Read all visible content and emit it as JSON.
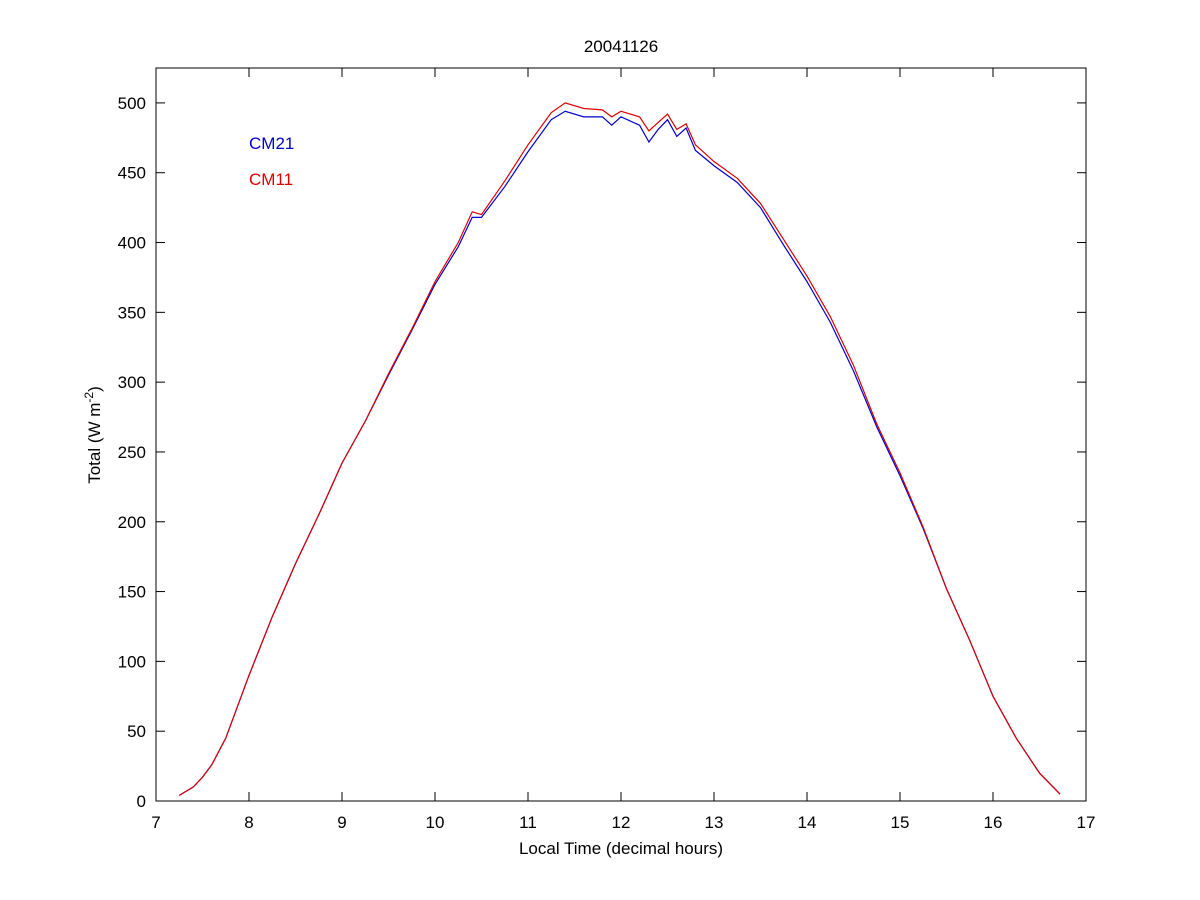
{
  "chart_data": {
    "type": "line",
    "title": "20041126",
    "xlabel": "Local Time (decimal hours)",
    "ylabel": {
      "text": "Total (W m",
      "sup": "-2",
      "end": ")"
    },
    "x": [
      7.25,
      7.4,
      7.5,
      7.6,
      7.75,
      8.0,
      8.25,
      8.5,
      8.75,
      9.0,
      9.25,
      9.5,
      9.75,
      10.0,
      10.25,
      10.4,
      10.5,
      10.75,
      11.0,
      11.25,
      11.4,
      11.6,
      11.8,
      11.9,
      12.0,
      12.2,
      12.3,
      12.4,
      12.5,
      12.6,
      12.7,
      12.8,
      13.0,
      13.25,
      13.5,
      13.75,
      14.0,
      14.25,
      14.5,
      14.75,
      15.0,
      15.25,
      15.5,
      15.75,
      16.0,
      16.25,
      16.5,
      16.72
    ],
    "series": [
      {
        "name": "CM21",
        "color": "#0000cc",
        "values": [
          4,
          10,
          17,
          26,
          45,
          90,
          132,
          170,
          205,
          242,
          272,
          305,
          337,
          370,
          397,
          418,
          418,
          440,
          465,
          488,
          494,
          490,
          490,
          484,
          490,
          484,
          472,
          481,
          488,
          476,
          482,
          466,
          455,
          443,
          425,
          398,
          372,
          343,
          308,
          268,
          233,
          195,
          152,
          115,
          75,
          45,
          20,
          5
        ]
      },
      {
        "name": "CM11",
        "color": "#dd0000",
        "values": [
          4,
          10,
          17,
          26,
          45,
          90,
          132,
          170,
          205,
          242,
          272,
          306,
          338,
          372,
          400,
          422,
          420,
          444,
          470,
          493,
          500,
          496,
          495,
          490,
          494,
          490,
          480,
          486,
          492,
          481,
          485,
          470,
          458,
          446,
          428,
          402,
          376,
          347,
          312,
          270,
          235,
          196,
          152,
          115,
          75,
          45,
          20,
          5
        ]
      }
    ],
    "xlim": [
      7,
      17
    ],
    "xticks": [
      7,
      8,
      9,
      10,
      11,
      12,
      13,
      14,
      15,
      16,
      17
    ],
    "ylim": [
      0,
      525
    ],
    "yticks": [
      0,
      50,
      100,
      150,
      200,
      250,
      300,
      350,
      400,
      450,
      500
    ],
    "grid": false,
    "legend": "upper left"
  }
}
